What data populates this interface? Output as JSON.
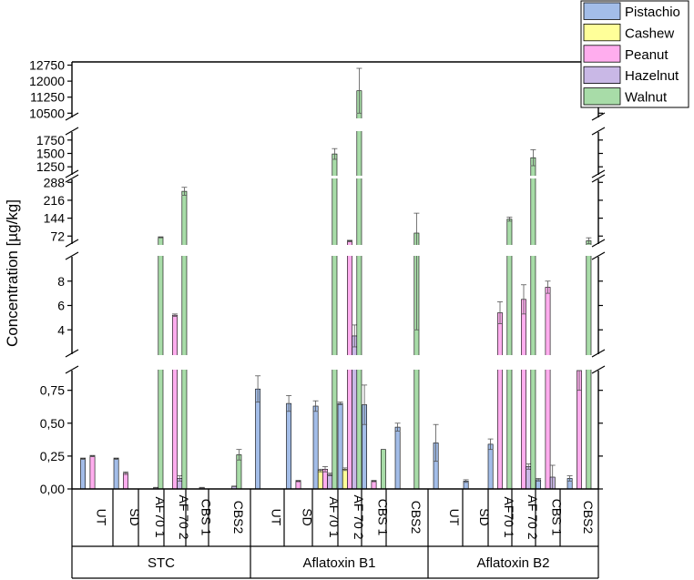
{
  "chart_data": {
    "type": "bar",
    "ylabel": "Concentration [µg/kg]",
    "y_axis_segments": [
      {
        "range": [
          0,
          0.9
        ],
        "ticks": [
          "0,00",
          "0,25",
          "0,50",
          "0,75"
        ],
        "tick_values": [
          0,
          0.25,
          0.5,
          0.75
        ]
      },
      {
        "range": [
          2,
          10
        ],
        "ticks": [
          "4",
          "6",
          "8"
        ],
        "tick_values": [
          4,
          6,
          8
        ]
      },
      {
        "range": [
          40,
          300
        ],
        "ticks": [
          "72",
          "144",
          "216",
          "288"
        ],
        "tick_values": [
          72,
          144,
          216,
          288
        ]
      },
      {
        "range": [
          1100,
          1900
        ],
        "ticks": [
          "1250",
          "1500",
          "1750"
        ],
        "tick_values": [
          1250,
          1500,
          1750
        ]
      },
      {
        "range": [
          10300,
          12900
        ],
        "ticks": [
          "10500",
          "11250",
          "12000",
          "12750"
        ],
        "tick_values": [
          10500,
          11250,
          12000,
          12750
        ]
      }
    ],
    "groups": [
      {
        "name": "STC",
        "categories": [
          "UT",
          "SD",
          "AF70 1",
          "AF 70 2",
          "CBS 1",
          "CBS2"
        ]
      },
      {
        "name": "Aflatoxin B1",
        "categories": [
          "UT",
          "SD",
          "AF70 1",
          "AF 70 2",
          "CBS 1",
          "CBS2"
        ]
      },
      {
        "name": "Aflatoxin B2",
        "categories": [
          "UT",
          "SD",
          "AF70 1",
          "AF 70 2",
          "CBS 1",
          "CBS2"
        ]
      }
    ],
    "legend": {
      "position": "top-right"
    },
    "series": [
      {
        "name": "Pistachio",
        "color": "#a3bde8",
        "values": [
          0.23,
          0.23,
          null,
          null,
          null,
          null,
          0.76,
          0.65,
          0.63,
          0.65,
          0.64,
          0.47,
          0.35,
          0.06,
          0.34,
          null,
          0.07,
          0.08
        ],
        "errors": [
          0.005,
          0.005,
          null,
          null,
          null,
          null,
          0.1,
          0.06,
          0.04,
          0.01,
          0.15,
          0.03,
          0.14,
          0.01,
          0.04,
          null,
          0.01,
          0.02
        ]
      },
      {
        "name": "Cashew",
        "color": "#ffff99",
        "values": [
          null,
          null,
          null,
          null,
          null,
          null,
          null,
          null,
          0.14,
          0.15,
          null,
          null,
          null,
          null,
          null,
          null,
          null,
          null
        ],
        "errors": [
          null,
          null,
          null,
          null,
          null,
          null,
          null,
          null,
          0.01,
          0.01,
          null,
          null,
          null,
          null,
          null,
          null,
          null,
          null
        ]
      },
      {
        "name": "Peanut",
        "color": "#ffadee",
        "values": [
          0.25,
          0.12,
          null,
          5.2,
          null,
          null,
          null,
          0.06,
          0.15,
          52,
          0.06,
          null,
          null,
          null,
          5.4,
          6.5,
          7.5,
          0.9
        ],
        "errors": [
          0.005,
          0.01,
          null,
          0.1,
          null,
          null,
          null,
          0.005,
          0.02,
          3,
          0.005,
          null,
          null,
          null,
          0.9,
          1.2,
          0.5,
          0.15
        ]
      },
      {
        "name": "Hazelnut",
        "color": "#c9b8e6",
        "values": [
          null,
          null,
          0.01,
          0.08,
          0.01,
          0.02,
          null,
          null,
          0.11,
          3.5,
          null,
          null,
          null,
          null,
          null,
          0.17,
          0.09,
          null
        ],
        "errors": [
          null,
          null,
          0.002,
          0.02,
          0.002,
          0.002,
          null,
          null,
          0.01,
          0.9,
          null,
          null,
          null,
          null,
          null,
          0.02,
          0.09,
          null
        ]
      },
      {
        "name": "Walnut",
        "color": "#a8dca8",
        "values": [
          null,
          null,
          67,
          252,
          null,
          0.26,
          null,
          null,
          1490,
          11550,
          0.3,
          84,
          null,
          null,
          140,
          1420,
          null,
          53
        ],
        "errors": [
          null,
          null,
          2,
          16,
          null,
          0.04,
          null,
          null,
          100,
          1050,
          null,
          80,
          null,
          null,
          8,
          150,
          null,
          12
        ]
      }
    ]
  }
}
